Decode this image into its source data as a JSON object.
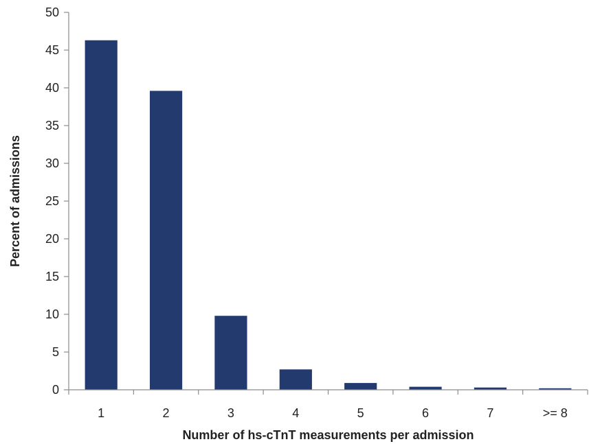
{
  "chart_data": {
    "type": "bar",
    "categories": [
      "1",
      "2",
      "3",
      "4",
      "5",
      "6",
      "7",
      ">= 8"
    ],
    "values": [
      46.3,
      39.6,
      9.8,
      2.7,
      0.9,
      0.4,
      0.3,
      0.2
    ],
    "title": "",
    "xlabel": "Number of hs-cTnT measurements per admission",
    "ylabel": "Percent of admissions",
    "ylim": [
      0,
      50
    ],
    "yticks": [
      0,
      5,
      10,
      15,
      20,
      25,
      30,
      35,
      40,
      45,
      50
    ],
    "grid": false,
    "legend": "none",
    "bar_color": "#223a6e"
  }
}
